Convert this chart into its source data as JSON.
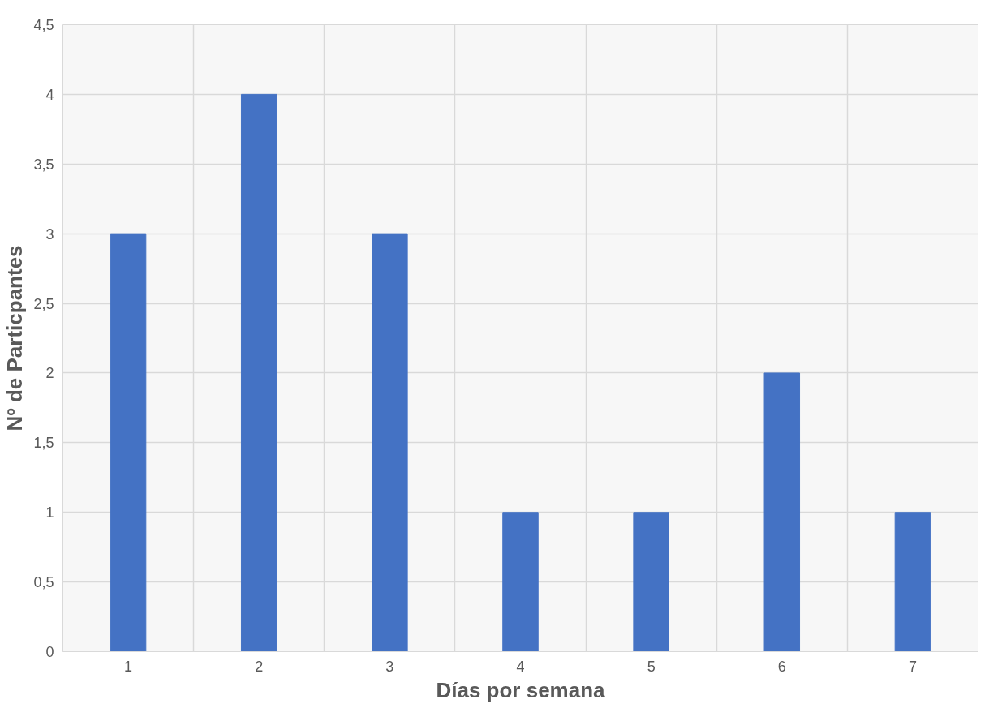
{
  "chart_data": {
    "type": "bar",
    "xlabel": "Días por semana",
    "ylabel": "Nº de Particpantes",
    "categories": [
      "1",
      "2",
      "3",
      "4",
      "5",
      "6",
      "7"
    ],
    "values": [
      3,
      4,
      3,
      1,
      1,
      2,
      1
    ],
    "color": "#4472c4",
    "ylim": [
      0,
      4.5
    ],
    "yticks": [
      0,
      {
        "value": 0.5,
        "label": "0,5"
      },
      1,
      {
        "value": 1.5,
        "label": "1,5"
      },
      2,
      {
        "value": 2.5,
        "label": "2,5"
      },
      3,
      {
        "value": 3.5,
        "label": "3,5"
      },
      4,
      {
        "value": 4.5,
        "label": "4,5"
      }
    ],
    "grid": true
  }
}
